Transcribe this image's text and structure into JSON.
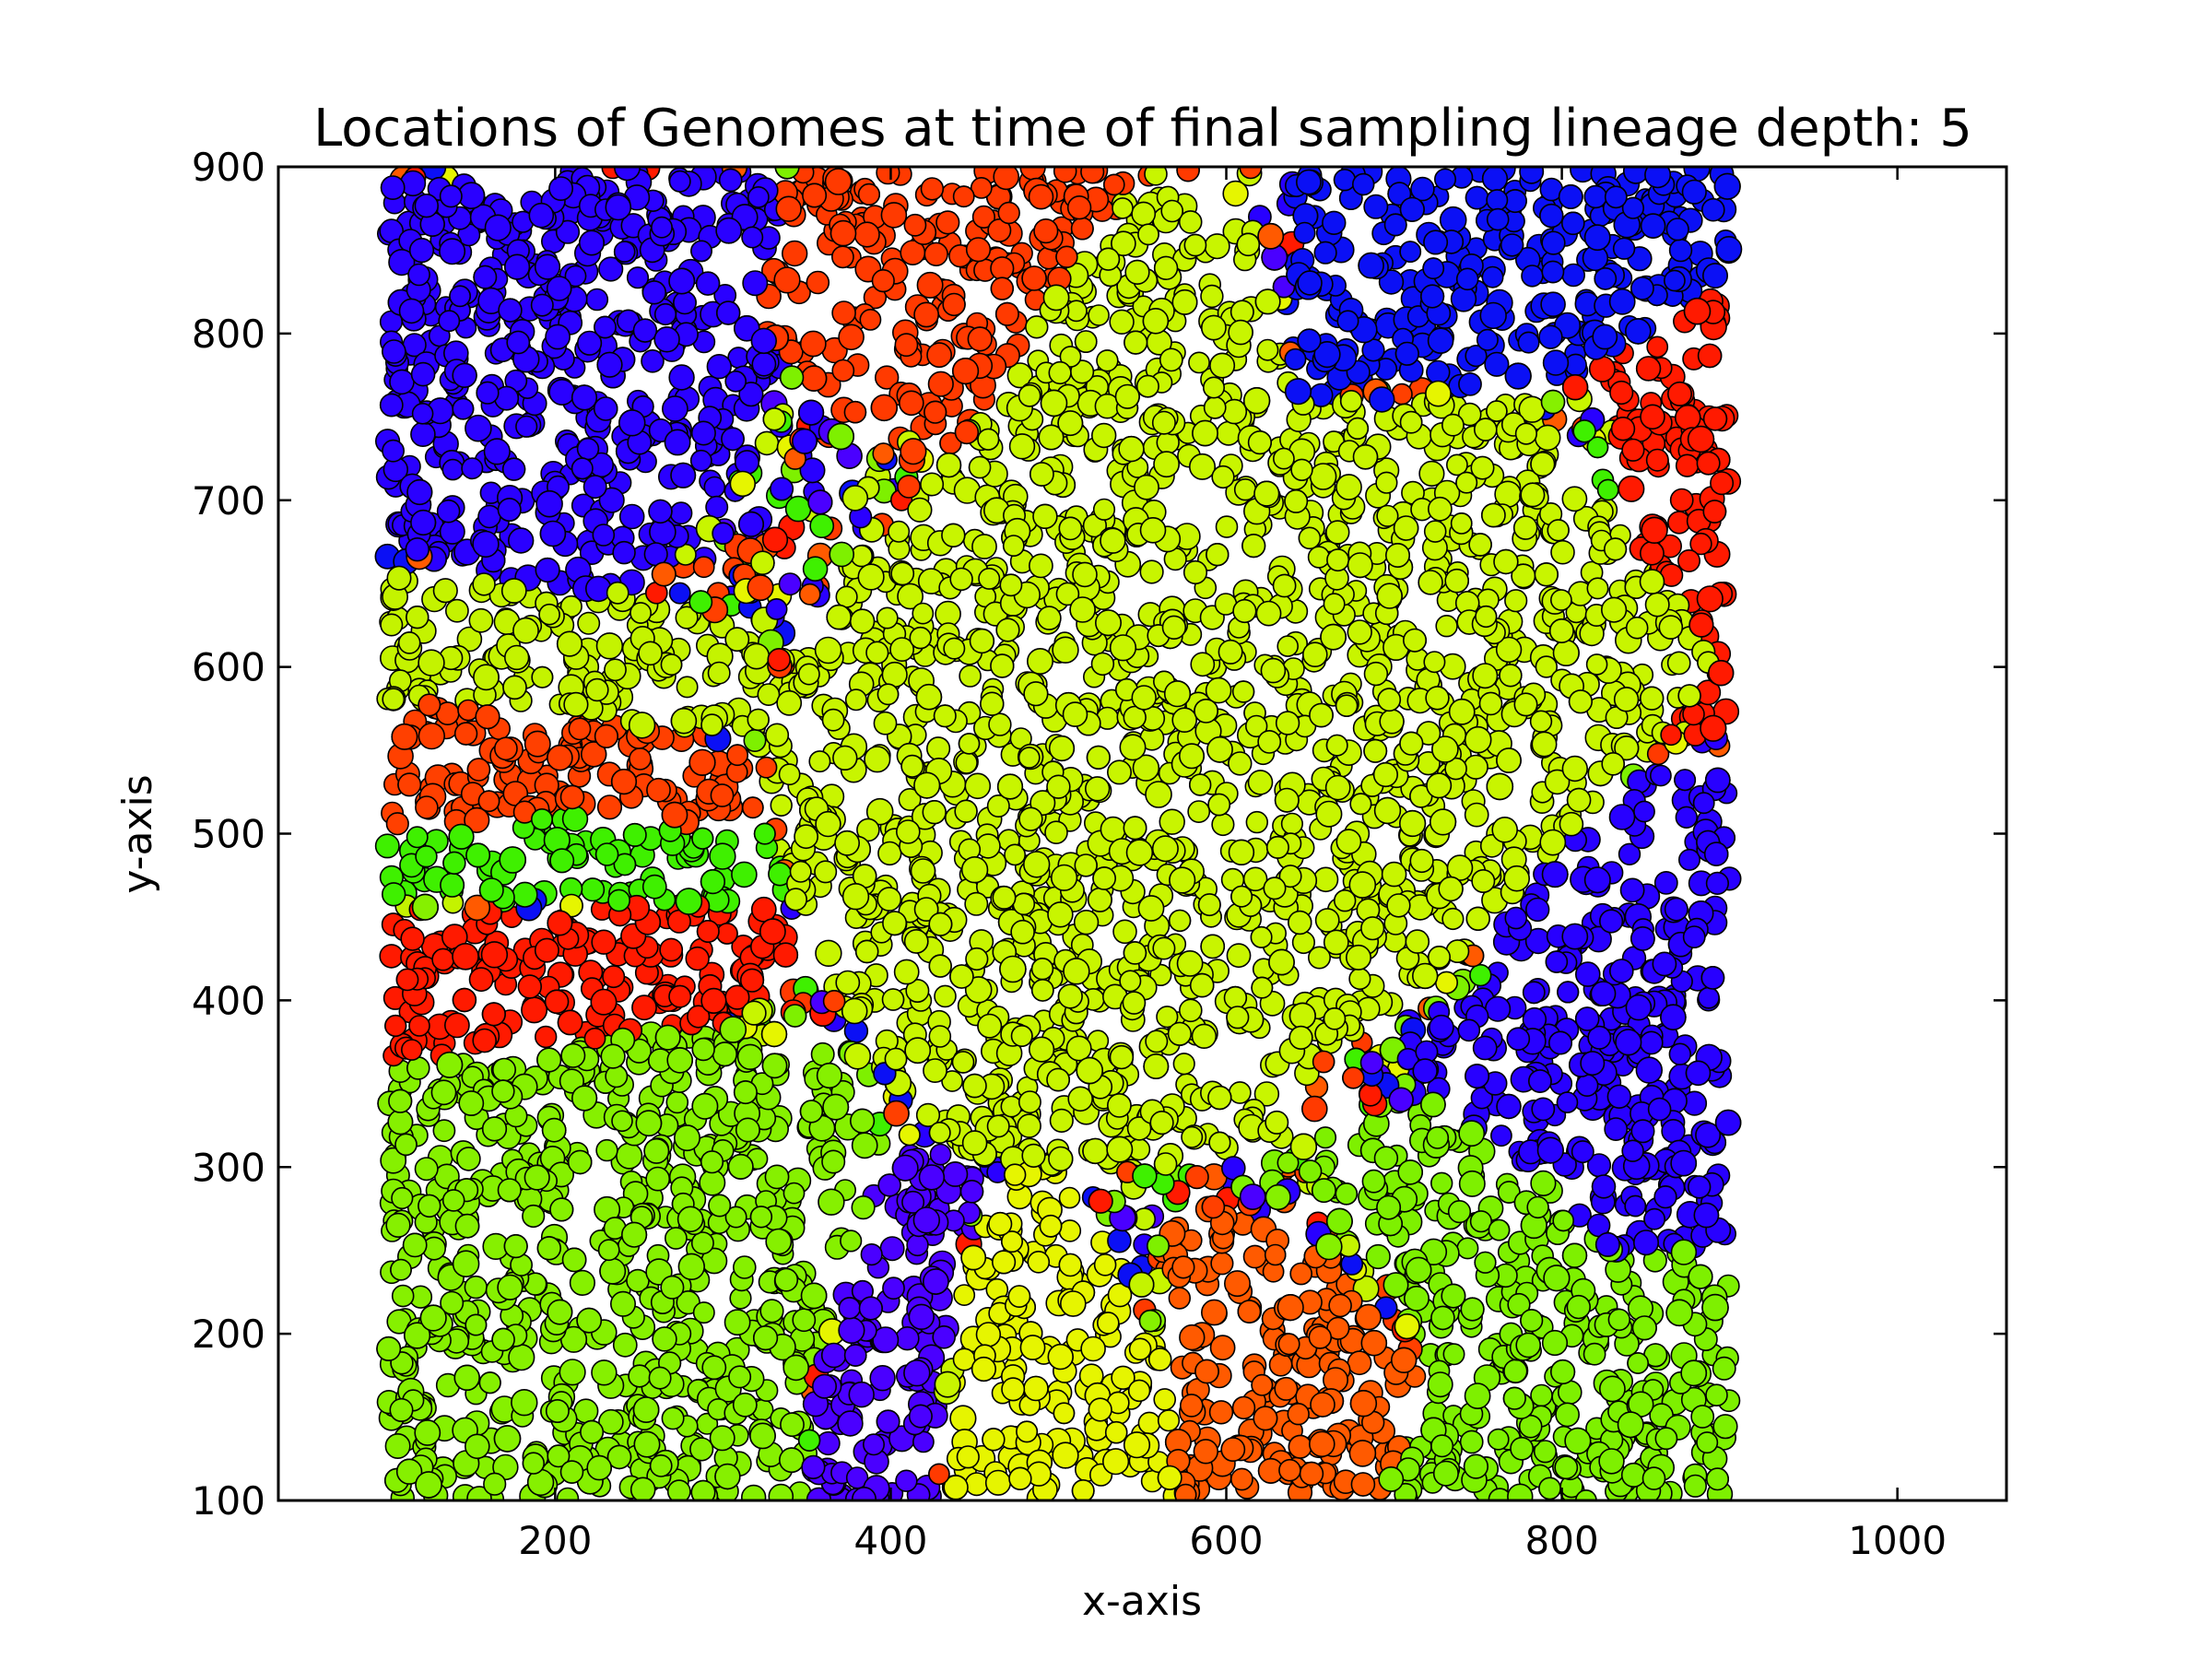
{
  "chart_data": {
    "type": "scatter",
    "title": "Locations of Genomes at time of final sampling lineage depth: 5",
    "xlabel": "x-axis",
    "ylabel": "y-axis",
    "xlim": [
      35,
      1065
    ],
    "ylim": [
      100,
      900
    ],
    "xticks": [
      200,
      400,
      600,
      800,
      1000
    ],
    "yticks": [
      100,
      200,
      300,
      400,
      500,
      600,
      700,
      800,
      900
    ],
    "grid": false,
    "legend": "none",
    "point_domain": {
      "x": [
        100,
        900
      ],
      "y": [
        100,
        900
      ]
    },
    "marker_edge_color": "#000000",
    "lineage_colors": [
      "#1f00ff",
      "#ff1e00",
      "#cbf500",
      "#82f500",
      "#47ec08",
      "#ff5a00",
      "#4a00ff",
      "#e8f700",
      "#0b10f5"
    ],
    "regions": [
      {
        "name": "lineage-blue-top-left",
        "color": "#2a00ff",
        "polygon": [
          [
            100,
            890
          ],
          [
            340,
            900
          ],
          [
            355,
            840
          ],
          [
            320,
            730
          ],
          [
            290,
            680
          ],
          [
            240,
            635
          ],
          [
            160,
            640
          ],
          [
            100,
            680
          ]
        ]
      },
      {
        "name": "lineage-red-top",
        "color": "#ff3a00",
        "polygon": [
          [
            340,
            900
          ],
          [
            585,
            900
          ],
          [
            560,
            860
          ],
          [
            480,
            800
          ],
          [
            440,
            730
          ],
          [
            360,
            750
          ],
          [
            320,
            810
          ]
        ]
      },
      {
        "name": "lineage-red-right",
        "color": "#ff1a00",
        "polygon": [
          [
            830,
            820
          ],
          [
            900,
            850
          ],
          [
            900,
            560
          ],
          [
            850,
            570
          ],
          [
            860,
            640
          ],
          [
            830,
            700
          ]
        ]
      },
      {
        "name": "lineage-blue-top-right",
        "color": "#0b10f5",
        "polygon": [
          [
            640,
            900
          ],
          [
            900,
            900
          ],
          [
            900,
            840
          ],
          [
            840,
            790
          ],
          [
            780,
            760
          ],
          [
            720,
            770
          ],
          [
            640,
            760
          ]
        ]
      },
      {
        "name": "lineage-yellow-green-left",
        "color": "#c4f300",
        "polygon": [
          [
            100,
            660
          ],
          [
            280,
            640
          ],
          [
            330,
            610
          ],
          [
            340,
            560
          ],
          [
            240,
            560
          ],
          [
            100,
            580
          ]
        ]
      },
      {
        "name": "lineage-red-left-1",
        "color": "#ff4000",
        "polygon": [
          [
            100,
            580
          ],
          [
            240,
            565
          ],
          [
            330,
            550
          ],
          [
            325,
            500
          ],
          [
            220,
            500
          ],
          [
            100,
            505
          ]
        ]
      },
      {
        "name": "lineage-green-left",
        "color": "#3ff000",
        "polygon": [
          [
            100,
            505
          ],
          [
            220,
            510
          ],
          [
            330,
            500
          ],
          [
            340,
            455
          ],
          [
            220,
            460
          ],
          [
            100,
            460
          ]
        ]
      },
      {
        "name": "lineage-red-left-2",
        "color": "#ff1a00",
        "polygon": [
          [
            100,
            455
          ],
          [
            230,
            455
          ],
          [
            330,
            460
          ],
          [
            350,
            420
          ],
          [
            300,
            385
          ],
          [
            200,
            370
          ],
          [
            100,
            360
          ]
        ]
      },
      {
        "name": "lineage-blue-right",
        "color": "#2800ff",
        "polygon": [
          [
            860,
            545
          ],
          [
            900,
            540
          ],
          [
            900,
            240
          ],
          [
            840,
            240
          ],
          [
            790,
            290
          ],
          [
            720,
            330
          ],
          [
            700,
            370
          ],
          [
            760,
            420
          ],
          [
            780,
            480
          ]
        ]
      },
      {
        "name": "lineage-green-bottom-left",
        "color": "#86f000",
        "polygon": [
          [
            100,
            360
          ],
          [
            300,
            385
          ],
          [
            370,
            360
          ],
          [
            395,
            310
          ],
          [
            380,
            250
          ],
          [
            350,
            170
          ],
          [
            350,
            100
          ],
          [
            100,
            100
          ]
        ]
      },
      {
        "name": "lineage-purple-bottom",
        "color": "#4a00ff",
        "polygon": [
          [
            350,
            100
          ],
          [
            425,
            100
          ],
          [
            430,
            180
          ],
          [
            440,
            240
          ],
          [
            455,
            300
          ],
          [
            430,
            320
          ],
          [
            390,
            300
          ],
          [
            375,
            240
          ],
          [
            355,
            160
          ]
        ]
      },
      {
        "name": "lineage-yellow-bottom",
        "color": "#e6f500",
        "polygon": [
          [
            430,
            100
          ],
          [
            570,
            100
          ],
          [
            565,
            180
          ],
          [
            540,
            240
          ],
          [
            505,
            300
          ],
          [
            470,
            300
          ],
          [
            445,
            240
          ],
          [
            435,
            160
          ]
        ]
      },
      {
        "name": "lineage-orange-bottom",
        "color": "#ff5a00",
        "polygon": [
          [
            570,
            100
          ],
          [
            690,
            100
          ],
          [
            710,
            120
          ],
          [
            720,
            170
          ],
          [
            680,
            230
          ],
          [
            650,
            260
          ],
          [
            610,
            270
          ],
          [
            580,
            280
          ],
          [
            560,
            250
          ],
          [
            565,
            180
          ]
        ]
      },
      {
        "name": "lineage-green-bottom-right",
        "color": "#7ef000",
        "polygon": [
          [
            690,
            100
          ],
          [
            900,
            100
          ],
          [
            900,
            250
          ],
          [
            830,
            250
          ],
          [
            780,
            300
          ],
          [
            720,
            340
          ],
          [
            660,
            320
          ],
          [
            655,
            270
          ],
          [
            700,
            230
          ],
          [
            720,
            170
          ]
        ]
      },
      {
        "name": "lineage-yellow-green-center",
        "color": "#c8f500",
        "polygon": [
          [
            325,
            560
          ],
          [
            345,
            610
          ],
          [
            390,
            680
          ],
          [
            430,
            720
          ],
          [
            470,
            770
          ],
          [
            510,
            850
          ],
          [
            560,
            900
          ],
          [
            620,
            870
          ],
          [
            640,
            760
          ],
          [
            720,
            760
          ],
          [
            780,
            760
          ],
          [
            830,
            700
          ],
          [
            860,
            650
          ],
          [
            895,
            600
          ],
          [
            860,
            560
          ],
          [
            760,
            450
          ],
          [
            720,
            400
          ],
          [
            650,
            360
          ],
          [
            620,
            300
          ],
          [
            540,
            300
          ],
          [
            470,
            300
          ],
          [
            420,
            320
          ],
          [
            370,
            400
          ],
          [
            340,
            470
          ]
        ]
      }
    ]
  }
}
